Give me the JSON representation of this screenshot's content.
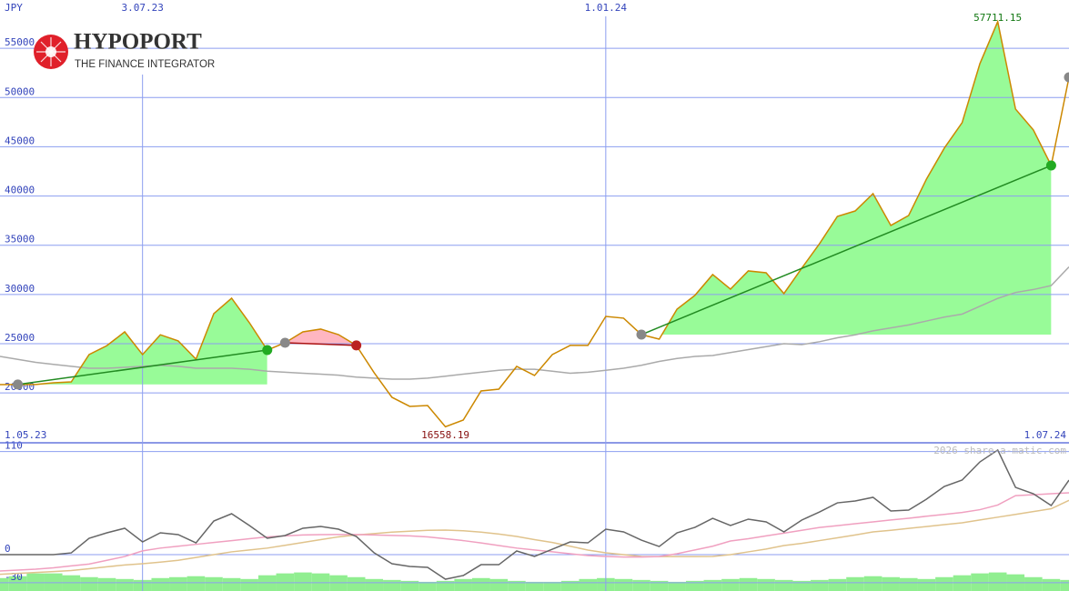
{
  "logo": {
    "name": "HYPOPORT",
    "tagline": "THE FINANCE INTEGRATOR"
  },
  "watermark": "2026 share-a-matic.com",
  "chart_data": [
    {
      "type": "line",
      "y_label": "JPY",
      "categories": [
        "1.05.23",
        null,
        null,
        null,
        null,
        null,
        null,
        null,
        "3.07.23",
        null,
        null,
        null,
        null,
        null,
        null,
        null,
        null,
        null,
        null,
        null,
        null,
        null,
        null,
        null,
        null,
        null,
        null,
        null,
        null,
        null,
        null,
        null,
        null,
        null,
        "1.01.24",
        null,
        null,
        null,
        null,
        null,
        null,
        null,
        null,
        null,
        null,
        null,
        null,
        null,
        null,
        null,
        null,
        null,
        null,
        null,
        null,
        null,
        null,
        null,
        null,
        null,
        "1.07.24"
      ],
      "series": [
        {
          "color": "#aaaaaa",
          "values": [
            23700,
            23400,
            23100,
            22900,
            22700,
            22500,
            22500,
            22600,
            22700,
            22800,
            22700,
            22500,
            22500,
            22500,
            22400,
            22200,
            22100,
            22000,
            21900,
            21800,
            21600,
            21500,
            21400,
            21400,
            21500,
            21700,
            21900,
            22100,
            22300,
            22400,
            22400,
            22200,
            22000,
            22100,
            22300,
            22500,
            22800,
            23200,
            23500,
            23700,
            23800,
            24100,
            24400,
            24700,
            25000,
            24900,
            25200,
            25600,
            25900,
            26300,
            26600,
            26900,
            27300,
            27700,
            28000,
            28800,
            29600,
            30200,
            30500,
            30900,
            32800
          ]
        },
        {
          "color": "#cc8800",
          "values": [
            20844,
            20850,
            20850,
            21030,
            21120,
            23890,
            24800,
            26200,
            23890,
            25900,
            25280,
            23430,
            28050,
            29620,
            27120,
            24350,
            25090,
            26200,
            26480,
            25920,
            24820,
            22050,
            19550,
            18630,
            18720,
            16558.19,
            17240,
            20200,
            20380,
            22690,
            21770,
            23890,
            24820,
            24820,
            27770,
            27590,
            25920,
            25460,
            28510,
            29900,
            32020,
            30540,
            32390,
            32200,
            30090,
            32670,
            35160,
            37930,
            38480,
            40240,
            37010,
            38020,
            41720,
            44860,
            47450,
            53450,
            57711.15,
            48830,
            46710,
            43100,
            52060
          ]
        }
      ],
      "trends": [
        {
          "start": 1,
          "end": 15,
          "color": "#228b22",
          "fill": "#98fb98",
          "end_dot": "#22aa22"
        },
        {
          "start": 16,
          "end": 20,
          "color": "#aa1111",
          "fill": "#ffb6c1",
          "end_dot": "#bb2222"
        },
        {
          "start": 36,
          "end": 59,
          "color": "#228b22",
          "fill": "#98fb98",
          "end_dot": "#22aa22"
        }
      ],
      "extreme_labels": {
        "max_color": "#117711",
        "min_color": "#881111"
      },
      "ylim": [
        14930,
        59910
      ],
      "yticks": [
        20000,
        25000,
        30000,
        35000,
        40000,
        45000,
        50000,
        55000
      ],
      "grid": true
    },
    {
      "type": "line",
      "series": [
        {
          "type": "bar",
          "color": "#90ee90",
          "values": [
            -25,
            -23,
            -20,
            -20,
            -22,
            -24,
            -25,
            -26,
            -27,
            -25,
            -24,
            -23,
            -24,
            -25,
            -26,
            -22,
            -20,
            -19,
            -20,
            -22,
            -24,
            -26,
            -27,
            -28,
            -29,
            -28,
            -26,
            -25,
            -26,
            -28,
            -29,
            -29,
            -28,
            -26,
            -25,
            -26,
            -27,
            -28,
            -29,
            -28,
            -27,
            -26,
            -25,
            -26,
            -27,
            -28,
            -27,
            -26,
            -24,
            -23,
            -24,
            -25,
            -26,
            -24,
            -22,
            -20,
            -19,
            -21,
            -24,
            -26,
            -27
          ]
        },
        {
          "color": "#e0c38c",
          "values": [
            -21,
            -20,
            -19,
            -18,
            -17,
            -15,
            -13,
            -11,
            -9.7,
            -8,
            -6,
            -3,
            0,
            3,
            5,
            7,
            10,
            13,
            16,
            19,
            21,
            22.5,
            24,
            25,
            26,
            26.2,
            25.5,
            24,
            22,
            19.4,
            16,
            13,
            9,
            4.9,
            2,
            0,
            -1.9,
            -2,
            -2,
            -2,
            -1.9,
            0,
            3,
            6,
            9.7,
            12,
            15,
            18,
            21,
            24.3,
            26,
            28,
            30,
            32,
            34,
            37,
            40,
            43,
            46,
            49,
            58
          ]
        },
        {
          "color": "#f0a0c0",
          "values": [
            -17.5,
            -16.5,
            -15.5,
            -14,
            -12,
            -10,
            -6,
            -2,
            4,
            7,
            9,
            11,
            13,
            15,
            17,
            19,
            20,
            21,
            21.4,
            21.5,
            21.5,
            21,
            20.5,
            20,
            19,
            17,
            15,
            12.5,
            9.7,
            7,
            5,
            3,
            1,
            -1,
            -1.9,
            -2.5,
            -2.5,
            -2,
            1,
            5,
            9,
            14.6,
            17,
            20,
            23,
            26,
            29,
            31,
            33,
            35,
            37,
            38.8,
            41,
            43,
            45,
            48,
            53,
            63,
            64,
            65,
            66
          ]
        },
        {
          "color": "#666666",
          "values": [
            0,
            0,
            0,
            0,
            1.9,
            17.5,
            23.3,
            28.2,
            13.6,
            23.3,
            21.4,
            12.6,
            35.9,
            43.7,
            31.1,
            17.5,
            20.4,
            28.2,
            30.1,
            27.2,
            19.4,
            1.9,
            -9.7,
            -12.6,
            -13.6,
            -26.2,
            -22.3,
            -10.7,
            -10.7,
            3.9,
            -1.9,
            5.8,
            13.6,
            12.6,
            27.2,
            24.3,
            15.5,
            8.7,
            23.3,
            29.1,
            38.8,
            31.1,
            37.9,
            35,
            24.3,
            36.9,
            45.6,
            55.3,
            57.3,
            61.2,
            46.6,
            47.6,
            59.2,
            72.8,
            79.6,
            99,
            111.7,
            71.8,
            65,
            52.4,
            79.6
          ]
        }
      ],
      "ylim": [
        -38.8,
        119.4
      ],
      "yticks": [
        110,
        0,
        -30
      ],
      "grid": true
    }
  ]
}
